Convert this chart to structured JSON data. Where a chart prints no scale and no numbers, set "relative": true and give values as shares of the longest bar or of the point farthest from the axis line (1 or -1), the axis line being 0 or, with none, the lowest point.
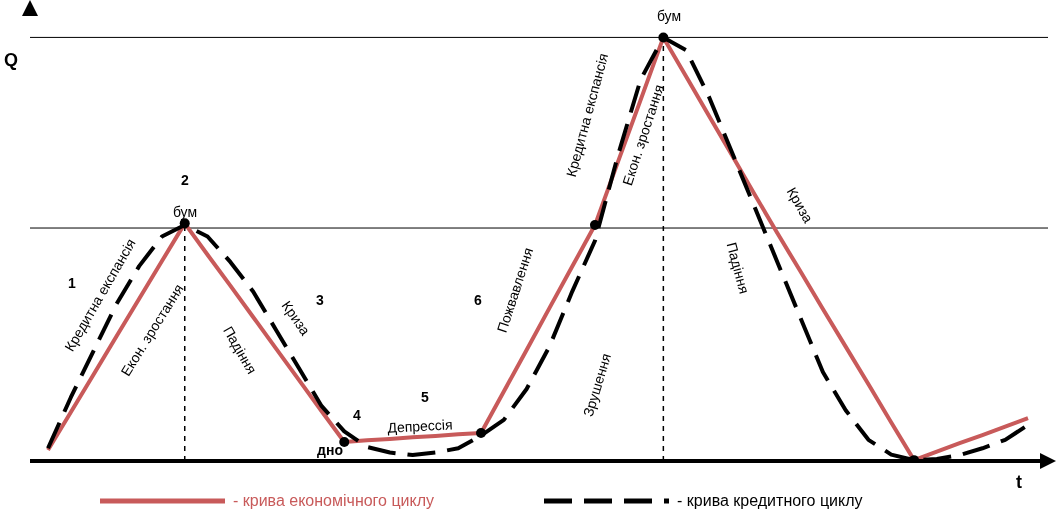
{
  "chart_data": {
    "type": "line",
    "relative": true,
    "xlabel": "t",
    "ylabel": "Q",
    "categories": [
      null,
      null,
      null,
      null,
      null,
      null,
      null,
      null,
      null,
      null,
      null,
      null,
      null,
      null,
      null,
      null,
      null,
      null,
      null,
      null,
      null,
      null,
      null,
      null,
      null,
      null,
      null,
      null,
      null,
      null,
      null,
      null,
      null,
      null,
      null,
      null,
      null,
      null,
      null,
      null,
      null,
      null,
      null,
      null
    ],
    "series": [
      {
        "name": "- крива економічного циклу",
        "color": "#c85a5a",
        "line_style": "solid",
        "values": [
          0.026,
          0.115,
          0.204,
          0.294,
          0.383,
          0.472,
          0.561,
          0.487,
          0.414,
          0.34,
          0.266,
          0.192,
          0.118,
          0.045,
          0.049,
          0.052,
          0.056,
          0.059,
          0.063,
          0.066,
          0.164,
          0.262,
          0.361,
          0.459,
          0.557,
          0.705,
          0.852,
          1,
          0.908,
          0.815,
          0.723,
          0.63,
          0.538,
          0.449,
          0.359,
          0.27,
          0.181,
          0.091,
          0.002,
          0.022,
          0.042,
          0.061,
          0.081,
          0.101
        ]
      },
      {
        "name": "- крива кредитного циклу",
        "color": "#000000",
        "line_style": "dashed",
        "values": [
          0.03,
          0.15,
          0.26,
          0.37,
          0.46,
          0.53,
          0.557,
          0.53,
          0.47,
          0.4,
          0.31,
          0.22,
          0.13,
          0.07,
          0.033,
          0.02,
          0.014,
          0.02,
          0.03,
          0.06,
          0.097,
          0.17,
          0.27,
          0.4,
          0.52,
          0.72,
          0.9,
          1,
          0.97,
          0.86,
          0.73,
          0.6,
          0.47,
          0.34,
          0.21,
          0.12,
          0.05,
          0.015,
          0.002,
          0.005,
          0.014,
          0.03,
          0.05,
          0.085
        ]
      }
    ],
    "ref_lines": [
      {
        "axis": "y",
        "value": 1,
        "color": "#000000",
        "line_style": "solid"
      },
      {
        "axis": "y",
        "value": 0.55,
        "color": "#000000",
        "line_style": "solid"
      }
    ],
    "legend": "bottom",
    "grid": false,
    "annotations": [
      "1",
      "2",
      "3",
      "4",
      "5",
      "6",
      "бум",
      "бум",
      "дно",
      "Кредитна експансія",
      "Екон. зростання",
      "Падіння",
      "Криза",
      "Депрессія",
      "Пожвавлення",
      "Кредитна експансія",
      "Екон. зростання",
      "Зрушення",
      "Падіння",
      "Криза"
    ]
  }
}
